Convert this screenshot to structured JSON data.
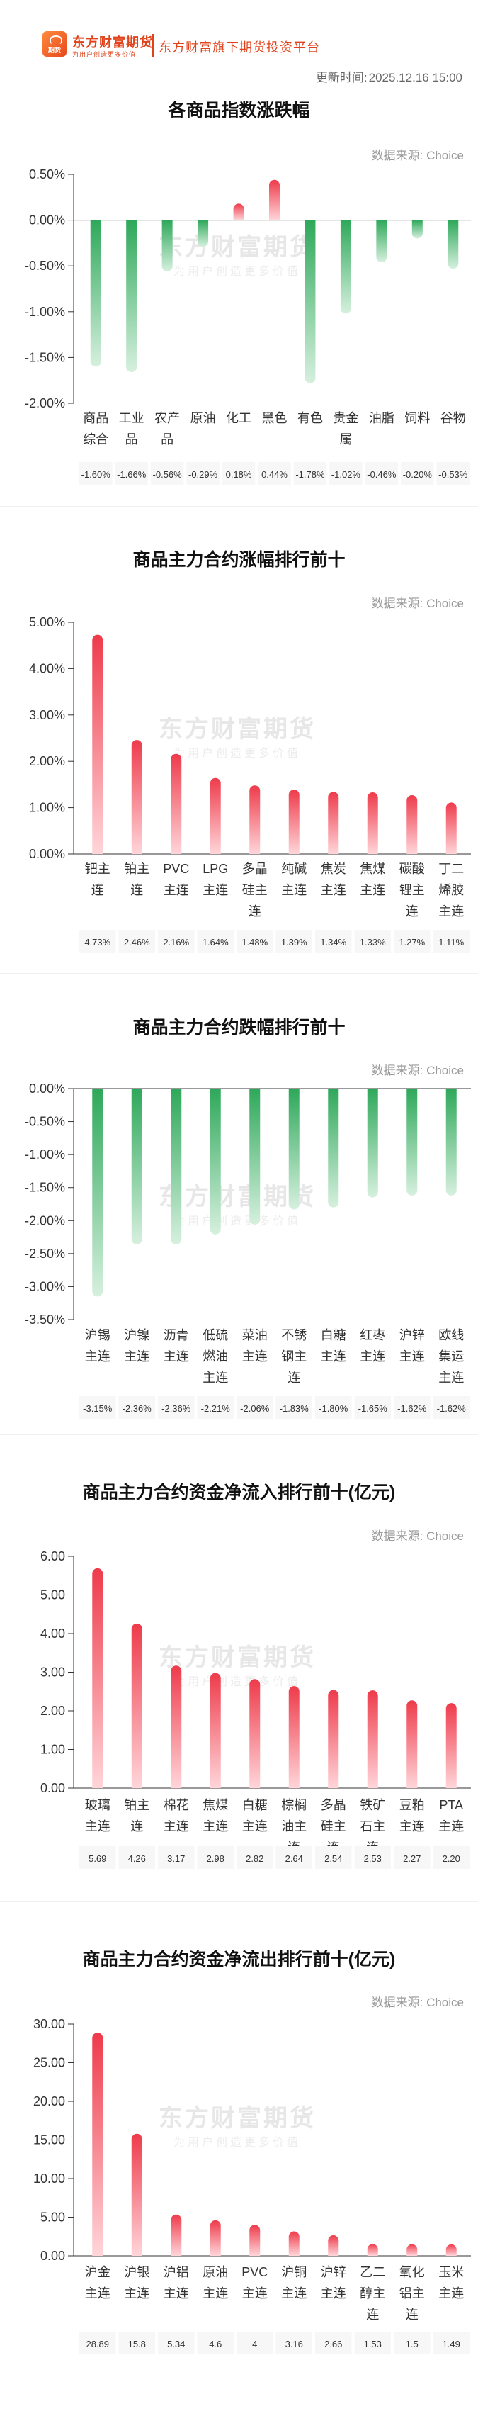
{
  "header": {
    "logo_text": "期货",
    "brand_name": "东方财富期货",
    "brand_slogan": "为用户创造更多价值",
    "platform": "东方财富旗下期货投资平台",
    "update_label": "更新时间:",
    "update_time": "2025.12.16 15:00"
  },
  "source_label": "数据来源: Choice",
  "watermark": {
    "main": "东方财富期货",
    "sub": "为用户创造更多价值"
  },
  "colors": {
    "up": "#ee3b4b",
    "down": "#2ea85a",
    "up_light": "#ffd5d9",
    "down_light": "#d6f0de",
    "brand": "#e0431c"
  },
  "chart_data": [
    {
      "type": "bar",
      "title": "各商品指数涨跌幅",
      "categories": [
        "商品综合",
        "工业品",
        "农产品",
        "原油",
        "化工",
        "黑色",
        "有色",
        "贵金属",
        "油脂",
        "饲料",
        "谷物"
      ],
      "values": [
        -1.6,
        -1.66,
        -0.56,
        -0.29,
        0.18,
        0.44,
        -1.78,
        -1.02,
        -0.46,
        -0.2,
        -0.53
      ],
      "value_labels": [
        "-1.60%",
        "-1.66%",
        "-0.56%",
        "-0.29%",
        "0.18%",
        "0.44%",
        "-1.78%",
        "-1.02%",
        "-0.46%",
        "-0.20%",
        "-0.53%"
      ],
      "yticks": [
        "0.50%",
        "0.00%",
        "-0.50%",
        "-1.00%",
        "-1.50%",
        "-2.00%"
      ],
      "ylim": [
        -2.0,
        0.5
      ],
      "tick_step": 0.5,
      "grid": false
    },
    {
      "type": "bar",
      "title": "商品主力合约涨幅排行前十",
      "categories": [
        "钯主连",
        "铂主连",
        "PVC主连",
        "LPG主连",
        "多晶硅主连",
        "纯碱主连",
        "焦炭主连",
        "焦煤主连",
        "碳酸锂主连",
        "丁二烯胶主连"
      ],
      "values": [
        4.73,
        2.46,
        2.16,
        1.64,
        1.48,
        1.39,
        1.34,
        1.33,
        1.27,
        1.11
      ],
      "value_labels": [
        "4.73%",
        "2.46%",
        "2.16%",
        "1.64%",
        "1.48%",
        "1.39%",
        "1.34%",
        "1.33%",
        "1.27%",
        "1.11%"
      ],
      "yticks": [
        "5.00%",
        "4.00%",
        "3.00%",
        "2.00%",
        "1.00%",
        "0.00%"
      ],
      "ylim": [
        0,
        5.0
      ],
      "tick_step": 1.0,
      "grid": false
    },
    {
      "type": "bar",
      "title": "商品主力合约跌幅排行前十",
      "categories": [
        "沪锡主连",
        "沪镍主连",
        "沥青主连",
        "低硫燃油主连",
        "菜油主连",
        "不锈钢主连",
        "白糖主连",
        "红枣主连",
        "沪锌主连",
        "欧线集运主连"
      ],
      "values": [
        -3.15,
        -2.36,
        -2.36,
        -2.21,
        -2.06,
        -1.83,
        -1.8,
        -1.65,
        -1.62,
        -1.62
      ],
      "value_labels": [
        "-3.15%",
        "-2.36%",
        "-2.36%",
        "-2.21%",
        "-2.06%",
        "-1.83%",
        "-1.80%",
        "-1.65%",
        "-1.62%",
        "-1.62%"
      ],
      "yticks": [
        "0.00%",
        "-0.50%",
        "-1.00%",
        "-1.50%",
        "-2.00%",
        "-2.50%",
        "-3.00%",
        "-3.50%"
      ],
      "ylim": [
        -3.5,
        0
      ],
      "tick_step": 0.5,
      "grid": false
    },
    {
      "type": "bar",
      "title": "商品主力合约资金净流入排行前十(亿元)",
      "categories": [
        "玻璃主连",
        "铂主连",
        "棉花主连",
        "焦煤主连",
        "白糖主连",
        "棕榈油主连",
        "多晶硅主连",
        "铁矿石主连",
        "豆粕主连",
        "PTA主连"
      ],
      "values": [
        5.69,
        4.26,
        3.17,
        2.98,
        2.82,
        2.64,
        2.54,
        2.53,
        2.27,
        2.2
      ],
      "value_labels": [
        "5.69",
        "4.26",
        "3.17",
        "2.98",
        "2.82",
        "2.64",
        "2.54",
        "2.53",
        "2.27",
        "2.20"
      ],
      "yticks": [
        "6.00",
        "5.00",
        "4.00",
        "3.00",
        "2.00",
        "1.00",
        "0.00"
      ],
      "ylim": [
        0,
        6.0
      ],
      "tick_step": 1.0,
      "grid": false
    },
    {
      "type": "bar",
      "title": "商品主力合约资金净流出排行前十(亿元)",
      "categories": [
        "沪金主连",
        "沪银主连",
        "沪铝主连",
        "原油主连",
        "PVC主连",
        "沪铜主连",
        "沪锌主连",
        "乙二醇主连",
        "氧化铝主连",
        "玉米主连"
      ],
      "values": [
        28.89,
        15.8,
        5.34,
        4.6,
        4,
        3.16,
        2.66,
        1.53,
        1.5,
        1.49
      ],
      "value_labels": [
        "28.89",
        "15.8",
        "5.34",
        "4.6",
        "4",
        "3.16",
        "2.66",
        "1.53",
        "1.5",
        "1.49"
      ],
      "yticks": [
        "30.00",
        "25.00",
        "20.00",
        "15.00",
        "10.00",
        "5.00",
        "0.00"
      ],
      "ylim": [
        0,
        30
      ],
      "tick_step": 5,
      "grid": false
    }
  ]
}
